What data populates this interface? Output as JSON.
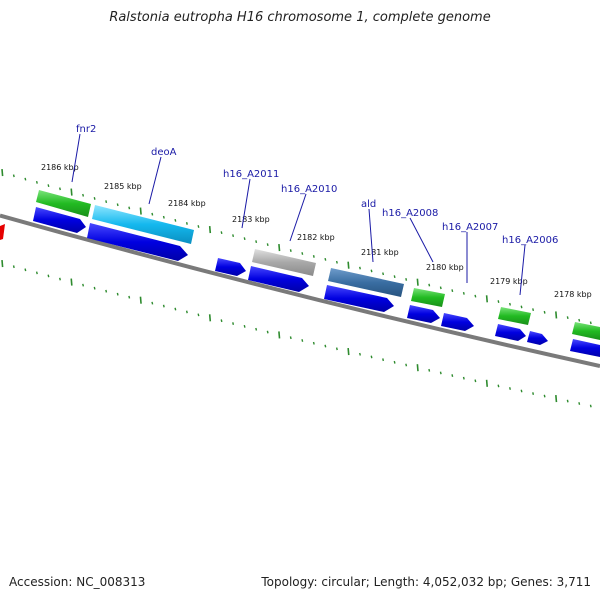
{
  "title": "Ralstonia eutropha H16 chromosome 1, complete genome",
  "footer": {
    "accession": "Accession: NC_008313",
    "summary": "Topology: circular; Length: 4,052,032 bp; Genes: 3,711"
  },
  "kbp_labels": [
    "2186 kbp",
    "2185 kbp",
    "2184 kbp",
    "2183 kbp",
    "2182 kbp",
    "2181 kbp",
    "2180 kbp",
    "2179 kbp",
    "2178 kbp"
  ],
  "gene_labels": [
    "fnr2",
    "deoA",
    "h16_A2011",
    "h16_A2010",
    "ald",
    "h16_A2008",
    "h16_A2007",
    "h16_A2006"
  ],
  "colors": {
    "backbone": "#7a7a7a",
    "tick": "#2e8b2e",
    "cds_blue": "#0000e6",
    "gene_green": "#2ecc2e",
    "gene_cyan": "#22c8f0",
    "gene_grey": "#b0b0b0",
    "gene_steel": "#3f74a8",
    "marker_red": "#e60000",
    "label_blue": "#1a1aa6"
  }
}
